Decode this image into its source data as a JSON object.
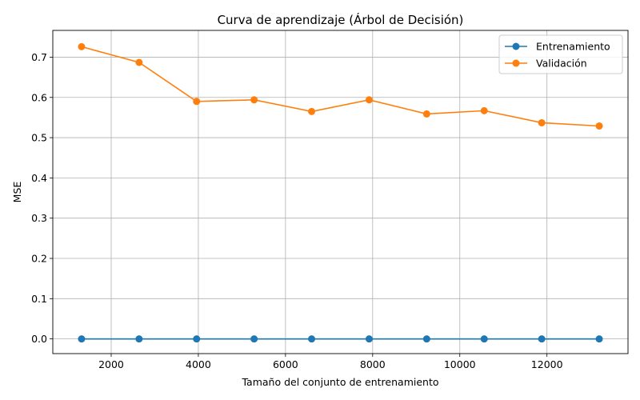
{
  "chart_data": {
    "type": "line",
    "title": "Curva de aprendizaje (Árbol de Decisión)",
    "xlabel": "Tamaño del conjunto de entrenamiento",
    "ylabel": "MSE",
    "xlim": [
      660,
      13860
    ],
    "ylim": [
      -0.0365,
      0.7665
    ],
    "xticks": [
      2000,
      4000,
      6000,
      8000,
      10000,
      12000
    ],
    "yticks": [
      0.0,
      0.1,
      0.2,
      0.3,
      0.4,
      0.5,
      0.6,
      0.7
    ],
    "grid": true,
    "legend_position": "top-right",
    "x": [
      1320,
      2640,
      3960,
      5280,
      6600,
      7920,
      9240,
      10560,
      11880,
      13200
    ],
    "series": [
      {
        "name": "Entrenamiento",
        "color": "#1f77b4",
        "values": [
          0.0,
          0.0,
          0.0,
          0.0,
          0.0,
          0.0,
          0.0,
          0.0,
          0.0,
          0.0
        ]
      },
      {
        "name": "Validación",
        "color": "#ff7f0e",
        "values": [
          0.726,
          0.687,
          0.59,
          0.594,
          0.565,
          0.594,
          0.559,
          0.567,
          0.537,
          0.529
        ]
      }
    ]
  }
}
